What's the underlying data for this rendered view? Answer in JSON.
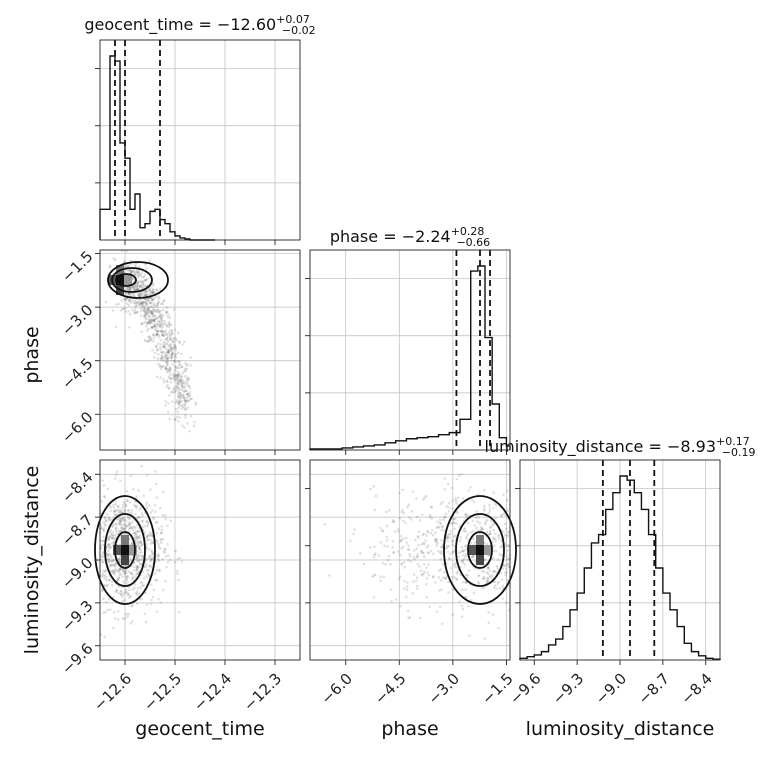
{
  "chart_data": {
    "type": "corner",
    "parameters": [
      "geocent_time",
      "phase",
      "luminosity_distance"
    ],
    "titles": {
      "geocent_time": {
        "prefix": "geocent_time = ",
        "median": "−12.60",
        "plus": "+0.07",
        "minus": "−0.02"
      },
      "phase": {
        "prefix": "phase = ",
        "median": "−2.24",
        "plus": "+0.28",
        "minus": "−0.66"
      },
      "luminosity_distance": {
        "prefix": "luminosity_distance = ",
        "median": "−8.93",
        "plus": "+0.17",
        "minus": "−0.19"
      }
    },
    "ranges": {
      "geocent_time": [
        -12.65,
        -12.25
      ],
      "phase": [
        -7.0,
        -1.4
      ],
      "luminosity_distance": [
        -9.7,
        -8.3
      ]
    },
    "ticks": {
      "geocent_time": [
        -12.6,
        -12.5,
        -12.4,
        -12.3
      ],
      "phase": [
        -6.0,
        -4.5,
        -3.0,
        -1.5
      ],
      "luminosity_distance": [
        -9.6,
        -9.3,
        -9.0,
        -8.7,
        -8.4
      ]
    },
    "tick_labels": {
      "geocent_time": [
        "−12.6",
        "−12.5",
        "−12.4",
        "−12.3"
      ],
      "phase": [
        "−6.0",
        "−4.5",
        "−3.0",
        "−1.5"
      ],
      "luminosity_distance": [
        "−9.6",
        "−9.3",
        "−9.0",
        "−8.7",
        "−8.4"
      ]
    },
    "quantiles": {
      "geocent_time": [
        -12.62,
        -12.6,
        -12.53
      ],
      "phase": [
        -2.9,
        -2.24,
        -1.96
      ],
      "luminosity_distance": [
        -9.12,
        -8.93,
        -8.76
      ]
    },
    "histograms": {
      "geocent_time": {
        "edges": [
          -12.65,
          -12.63,
          -12.62,
          -12.61,
          -12.6,
          -12.59,
          -12.58,
          -12.57,
          -12.56,
          -12.55,
          -12.54,
          -12.53,
          -12.52,
          -12.51,
          -12.5,
          -12.49,
          -12.48,
          -12.47,
          -12.46,
          -12.45,
          -12.44,
          -12.43,
          -12.42
        ],
        "counts": [
          30,
          180,
          175,
          95,
          80,
          30,
          45,
          12,
          16,
          28,
          30,
          20,
          16,
          8,
          4,
          2,
          1,
          0,
          0,
          0,
          0,
          0
        ]
      },
      "phase": {
        "edges": [
          -7.0,
          -6.7,
          -6.4,
          -6.1,
          -5.8,
          -5.5,
          -5.2,
          -4.9,
          -4.6,
          -4.3,
          -4.0,
          -3.7,
          -3.4,
          -3.1,
          -2.8,
          -2.5,
          -2.3,
          -2.1,
          -1.9,
          -1.7,
          -1.5,
          -1.4
        ],
        "counts": [
          1,
          1,
          1,
          2,
          3,
          4,
          5,
          7,
          9,
          11,
          12,
          13,
          15,
          17,
          30,
          175,
          180,
          110,
          45,
          12,
          4
        ]
      },
      "luminosity_distance": {
        "edges": [
          -9.7,
          -9.65,
          -9.6,
          -9.55,
          -9.5,
          -9.45,
          -9.4,
          -9.35,
          -9.3,
          -9.25,
          -9.2,
          -9.15,
          -9.1,
          -9.05,
          -9.0,
          -8.95,
          -8.9,
          -8.85,
          -8.8,
          -8.75,
          -8.7,
          -8.65,
          -8.6,
          -8.55,
          -8.5,
          -8.45,
          -8.4,
          -8.35,
          -8.3
        ],
        "counts": [
          2,
          4,
          6,
          10,
          18,
          25,
          40,
          60,
          80,
          110,
          140,
          150,
          180,
          200,
          220,
          215,
          200,
          180,
          150,
          110,
          80,
          60,
          40,
          20,
          10,
          5,
          2,
          1
        ]
      }
    },
    "panels_2d": [
      {
        "x": "geocent_time",
        "y": "phase",
        "cluster_center": [
          -12.61,
          -2.24
        ],
        "contour_levels": 3
      },
      {
        "x": "geocent_time",
        "y": "luminosity_distance",
        "cluster_center": [
          -12.6,
          -8.93
        ],
        "contour_levels": 3
      },
      {
        "x": "phase",
        "y": "luminosity_distance",
        "cluster_center": [
          -2.24,
          -8.93
        ],
        "contour_levels": 3
      }
    ]
  }
}
